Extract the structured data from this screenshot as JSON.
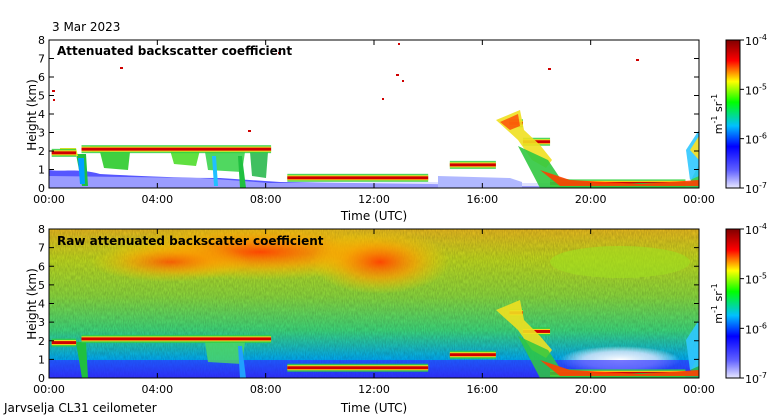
{
  "date": "3 Mar 2023",
  "footer": "Jarvselja CL31 ceilometer",
  "chart_data": [
    {
      "type": "heatmap",
      "title": "Attenuated backscatter coefficient",
      "xlabel": "Time (UTC)",
      "ylabel": "Height (km)",
      "xticks": [
        "00:00",
        "04:00",
        "08:00",
        "12:00",
        "16:00",
        "20:00",
        "00:00"
      ],
      "xlim_hours": [
        0,
        24
      ],
      "ylim": [
        0,
        8
      ],
      "yticks": [
        0,
        1,
        2,
        3,
        4,
        5,
        6,
        7,
        8
      ],
      "colorscale": {
        "unit_base": "m",
        "unit_exp1": "-1",
        "unit_mid": "sr",
        "unit_exp2": "-1",
        "log": true,
        "ticks": [
          {
            "base": "10",
            "exp": "-4"
          },
          {
            "base": "10",
            "exp": "-5"
          },
          {
            "base": "10",
            "exp": "-6"
          },
          {
            "base": "10",
            "exp": "-7"
          }
        ],
        "colors": [
          "#e8e8ff",
          "#0000ff",
          "#00c0ff",
          "#00ff00",
          "#ffff00",
          "#ff0000",
          "#800000"
        ]
      },
      "layers": {
        "cloud_base_km": [
          {
            "start_h": 0.1,
            "end_h": 1.0,
            "height": 1.9
          },
          {
            "start_h": 1.2,
            "end_h": 8.2,
            "height": 2.1
          },
          {
            "start_h": 8.8,
            "end_h": 14.0,
            "height": 0.55
          },
          {
            "start_h": 14.8,
            "end_h": 16.5,
            "height": 1.25
          },
          {
            "start_h": 17.0,
            "end_h": 17.5,
            "height": 3.5
          },
          {
            "start_h": 17.5,
            "end_h": 18.5,
            "height": 2.5
          },
          {
            "start_h": 18.5,
            "end_h": 23.5,
            "height": 0.25
          }
        ]
      }
    },
    {
      "type": "heatmap",
      "title": "Raw attenuated backscatter coefficient",
      "xlabel": "Time (UTC)",
      "ylabel": "Height (km)",
      "xticks": [
        "00:00",
        "04:00",
        "08:00",
        "12:00",
        "16:00",
        "20:00",
        "00:00"
      ],
      "xlim_hours": [
        0,
        24
      ],
      "ylim": [
        0,
        8
      ],
      "yticks": [
        0,
        1,
        2,
        3,
        4,
        5,
        6,
        7,
        8
      ],
      "colorscale": {
        "unit_base": "m",
        "unit_exp1": "-1",
        "unit_mid": "sr",
        "unit_exp2": "-1",
        "log": true,
        "ticks": [
          {
            "base": "10",
            "exp": "-4"
          },
          {
            "base": "10",
            "exp": "-5"
          },
          {
            "base": "10",
            "exp": "-6"
          },
          {
            "base": "10",
            "exp": "-7"
          }
        ],
        "colors": [
          "#e8e8ff",
          "#0000ff",
          "#00c0ff",
          "#00ff00",
          "#ffff00",
          "#ff0000",
          "#800000"
        ]
      }
    }
  ]
}
